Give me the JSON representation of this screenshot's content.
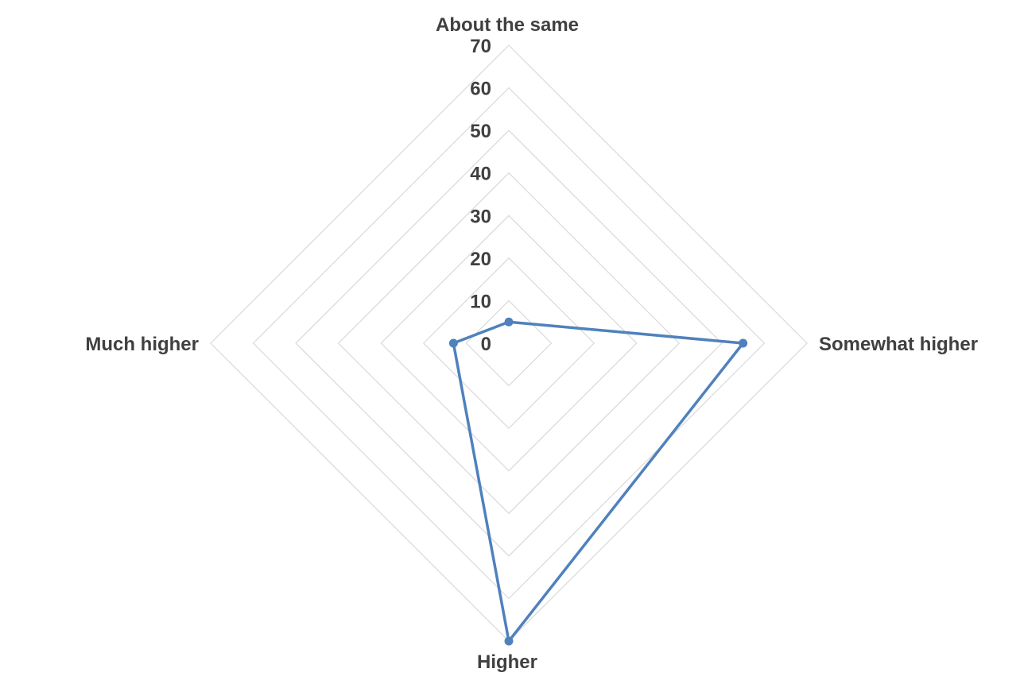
{
  "chart_data": {
    "type": "radar",
    "title": "",
    "categories": [
      "About the same",
      "Somewhat higher",
      "Higher",
      "Much higher"
    ],
    "series": [
      {
        "values": [
          5,
          55,
          70,
          13
        ],
        "color": "#4f81bd"
      }
    ],
    "r_axis": {
      "min": 0,
      "max": 70,
      "step": 10,
      "ticks": [
        "0",
        "10",
        "20",
        "30",
        "40",
        "50",
        "60",
        "70"
      ]
    },
    "grid": true,
    "legend": "none",
    "grid_color": "#d9d9d9"
  }
}
